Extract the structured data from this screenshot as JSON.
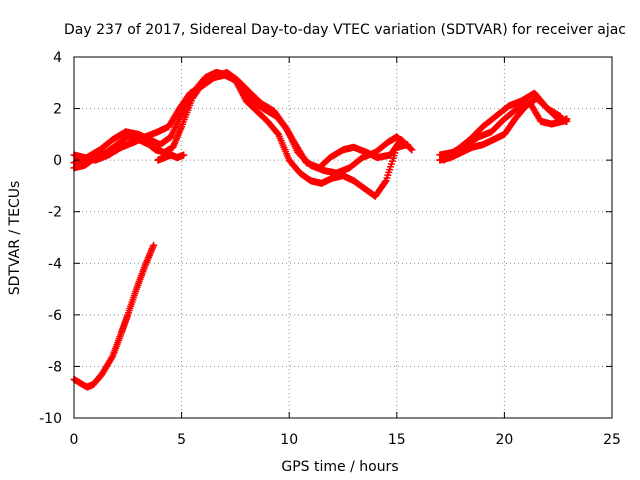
{
  "chart_data": {
    "type": "scatter",
    "title": "Day 237 of 2017, Sidereal Day-to-day VTEC variation (SDTVAR) for receiver ajac",
    "xlabel": "GPS time / hours",
    "ylabel": "SDTVAR / TECUs",
    "xlim": [
      0,
      25
    ],
    "ylim": [
      -10,
      4
    ],
    "x_ticks": [
      0,
      5,
      10,
      15,
      20,
      25
    ],
    "x_tick_labels": [
      "0",
      "5",
      "10",
      "15",
      "20",
      "25"
    ],
    "y_ticks": [
      -10,
      -8,
      -6,
      -4,
      -2,
      0,
      2,
      4
    ],
    "y_tick_labels": [
      "-10",
      "-8",
      "-6",
      "-4",
      "-2",
      "0",
      "2",
      "4"
    ],
    "grid": true,
    "marker": "plus",
    "color": "#ff0000",
    "series": [
      {
        "name": "arc-0",
        "x": [
          0.0,
          0.6,
          0.9,
          1.3,
          1.8,
          2.2,
          2.5,
          2.9,
          3.3,
          3.7
        ],
        "y": [
          -8.5,
          -8.8,
          -8.7,
          -8.3,
          -7.6,
          -6.7,
          -6.0,
          -5.0,
          -4.1,
          -3.3
        ]
      },
      {
        "name": "arc-1",
        "x": [
          0.0,
          0.5,
          1.0,
          1.5,
          2.0,
          2.5,
          3.0,
          3.5,
          3.8,
          4.2,
          4.6,
          5.0,
          5.5,
          6.0,
          6.5,
          7.0,
          7.5,
          8.0,
          8.5,
          9.0,
          9.5,
          10.0,
          10.5,
          11.0,
          11.5,
          12.0,
          12.5,
          13.0,
          13.5,
          14.0,
          14.5,
          15.0,
          15.5
        ],
        "y": [
          -0.3,
          -0.2,
          0.1,
          0.3,
          0.6,
          0.9,
          0.8,
          0.6,
          0.4,
          0.3,
          0.5,
          1.3,
          2.4,
          3.0,
          3.2,
          3.3,
          3.1,
          2.3,
          1.9,
          1.5,
          1.0,
          0.0,
          -0.5,
          -0.8,
          -0.9,
          -0.7,
          -0.6,
          -0.8,
          -1.1,
          -1.4,
          -0.8,
          0.5,
          0.6
        ]
      },
      {
        "name": "arc-2",
        "x": [
          0.0,
          0.6,
          1.2,
          1.8,
          2.4,
          3.0,
          3.5,
          4.0,
          4.5,
          5.0,
          5.6,
          6.1,
          6.6,
          7.2,
          7.7,
          8.3,
          8.8,
          9.4,
          9.9,
          10.4,
          11.0,
          11.6,
          12.2,
          12.8,
          13.4,
          14.0,
          14.6,
          15.0,
          15.4
        ],
        "y": [
          -0.1,
          0.1,
          0.4,
          0.8,
          1.1,
          1.0,
          0.8,
          0.6,
          0.9,
          1.8,
          2.7,
          3.2,
          3.4,
          3.3,
          2.9,
          2.3,
          2.0,
          1.7,
          1.2,
          0.3,
          -0.2,
          -0.4,
          -0.5,
          -0.3,
          0.1,
          0.3,
          0.7,
          0.9,
          0.6
        ]
      },
      {
        "name": "arc-3",
        "x": [
          0.0,
          0.5,
          1.0,
          1.6,
          2.2,
          2.8,
          3.3,
          3.9,
          4.4,
          4.9,
          5.4,
          6.0,
          6.5,
          7.1,
          7.6,
          8.2,
          8.7,
          9.3,
          9.8,
          10.3,
          10.8,
          11.4,
          11.9,
          12.5,
          13.0,
          13.6,
          14.1,
          14.7,
          15.2,
          15.7
        ],
        "y": [
          0.2,
          0.1,
          0.0,
          0.2,
          0.5,
          0.7,
          0.9,
          1.1,
          1.3,
          2.0,
          2.6,
          2.9,
          3.2,
          3.4,
          3.1,
          2.6,
          2.2,
          1.9,
          1.3,
          0.6,
          -0.1,
          -0.3,
          0.1,
          0.4,
          0.5,
          0.3,
          0.1,
          0.2,
          0.8,
          0.4
        ]
      },
      {
        "name": "arc-4",
        "x": [
          3.9,
          4.2,
          4.5,
          4.8,
          5.1
        ],
        "y": [
          0.0,
          0.1,
          0.2,
          0.1,
          0.2
        ]
      },
      {
        "name": "arc-5",
        "x": [
          17.0,
          17.5,
          18.0,
          18.5,
          19.0,
          19.5,
          20.0,
          20.5,
          21.0,
          21.5,
          22.0,
          22.5,
          22.9
        ],
        "y": [
          0.0,
          0.1,
          0.3,
          0.5,
          0.6,
          0.8,
          1.0,
          1.6,
          2.1,
          2.4,
          2.0,
          1.6,
          1.5
        ]
      },
      {
        "name": "arc-6",
        "x": [
          17.0,
          17.6,
          18.2,
          18.8,
          19.4,
          20.0,
          20.6,
          21.2,
          21.7,
          22.2,
          22.7,
          22.9
        ],
        "y": [
          0.2,
          0.3,
          0.6,
          0.9,
          1.1,
          1.6,
          2.0,
          2.2,
          1.5,
          1.4,
          1.5,
          1.6
        ]
      },
      {
        "name": "arc-7",
        "x": [
          17.2,
          17.8,
          18.4,
          19.0,
          19.6,
          20.2,
          20.8,
          21.4,
          22.0,
          22.6
        ],
        "y": [
          0.0,
          0.4,
          0.8,
          1.3,
          1.7,
          2.1,
          2.3,
          2.6,
          2.0,
          1.7
        ]
      }
    ]
  }
}
